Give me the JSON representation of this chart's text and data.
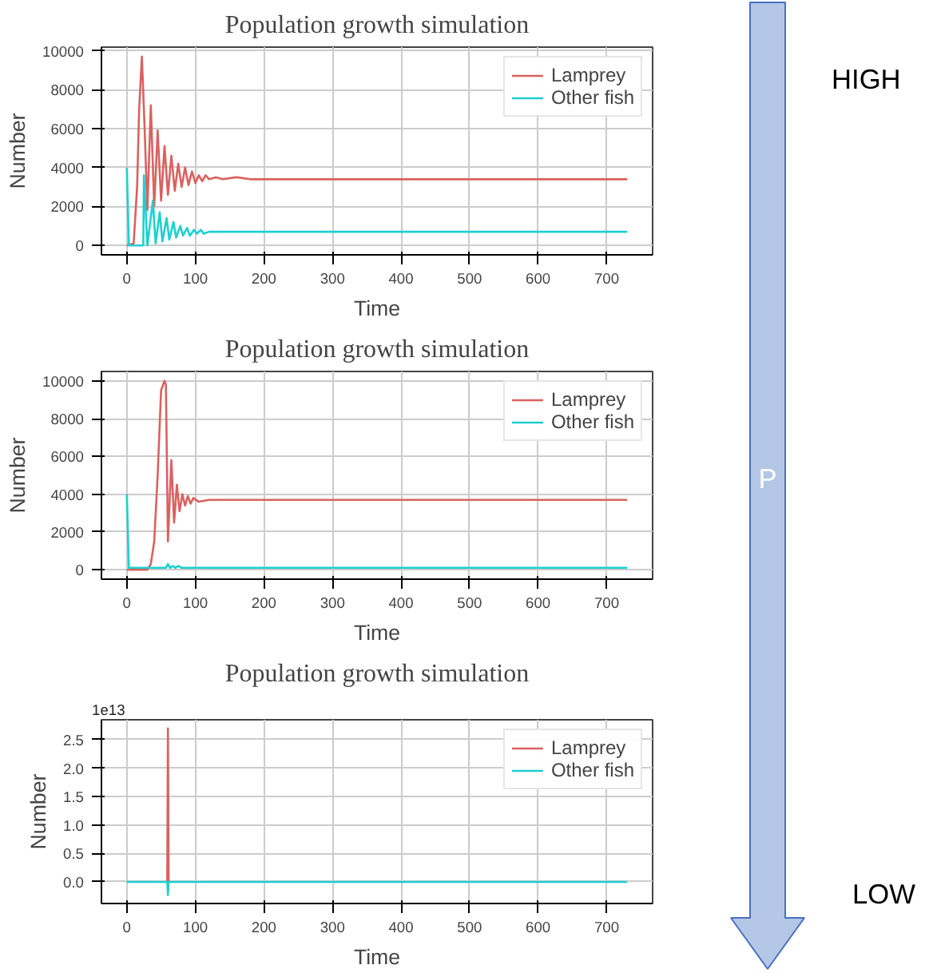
{
  "chart_data": [
    {
      "type": "line",
      "title": "Population growth simulation",
      "xlabel": "Time",
      "ylabel": "Number",
      "xlim": [
        -37,
        767
      ],
      "ylim": [
        -485,
        10185
      ],
      "xticks": [
        0,
        100,
        200,
        300,
        400,
        500,
        600,
        700
      ],
      "yticks": [
        0,
        2000,
        4000,
        6000,
        8000,
        10000
      ],
      "grid": true,
      "legend": "top right",
      "marker": "none",
      "line_style": "solid",
      "series": [
        {
          "name": "Lamprey",
          "color": "#d9625f",
          "x": [
            0,
            10,
            15,
            18,
            22,
            26,
            30,
            35,
            40,
            45,
            50,
            55,
            60,
            65,
            70,
            75,
            80,
            85,
            90,
            95,
            100,
            105,
            110,
            115,
            120,
            130,
            140,
            160,
            180,
            730
          ],
          "values": [
            0,
            100,
            3000,
            7000,
            9700,
            6000,
            1800,
            7200,
            2000,
            5900,
            2300,
            5100,
            2600,
            4600,
            2800,
            4200,
            3000,
            4000,
            3100,
            3800,
            3200,
            3600,
            3300,
            3600,
            3400,
            3500,
            3400,
            3500,
            3400,
            3400
          ]
        },
        {
          "name": "Other fish",
          "color": "#1fcfcf",
          "x": [
            0,
            3,
            24,
            25,
            30,
            38,
            42,
            48,
            52,
            58,
            62,
            68,
            72,
            78,
            82,
            88,
            92,
            98,
            102,
            108,
            112,
            120,
            130,
            150,
            180,
            730
          ],
          "values": [
            4000,
            0,
            0,
            3600,
            0,
            2300,
            100,
            1700,
            200,
            1400,
            300,
            1200,
            400,
            1000,
            500,
            900,
            500,
            800,
            600,
            800,
            600,
            700,
            700,
            700,
            700,
            700
          ]
        }
      ]
    },
    {
      "type": "line",
      "title": "Population growth simulation",
      "xlabel": "Time",
      "ylabel": "Number",
      "xlim": [
        -37,
        767
      ],
      "ylim": [
        -500,
        10500
      ],
      "xticks": [
        0,
        100,
        200,
        300,
        400,
        500,
        600,
        700
      ],
      "yticks": [
        0,
        2000,
        4000,
        6000,
        8000,
        10000
      ],
      "grid": true,
      "legend": "top right",
      "marker": "none",
      "line_style": "solid",
      "series": [
        {
          "name": "Lamprey",
          "color": "#d9625f",
          "x": [
            0,
            30,
            35,
            40,
            45,
            50,
            55,
            57,
            60,
            65,
            69,
            73,
            77,
            81,
            85,
            89,
            93,
            97,
            105,
            120,
            730
          ],
          "values": [
            0,
            0,
            300,
            1500,
            5000,
            9500,
            10000,
            9800,
            1500,
            5800,
            2500,
            4500,
            3100,
            4000,
            3400,
            3900,
            3500,
            3800,
            3600,
            3700,
            3700
          ]
        },
        {
          "name": "Other fish",
          "color": "#1fcfcf",
          "x": [
            0,
            3,
            57,
            60,
            63,
            67,
            71,
            75,
            80,
            730
          ],
          "values": [
            4000,
            100,
            100,
            300,
            100,
            200,
            100,
            200,
            100,
            100
          ]
        }
      ]
    },
    {
      "type": "line",
      "title": "Population growth simulation",
      "xlabel": "Time",
      "ylabel": "Number",
      "annotations": [
        "1e13"
      ],
      "xlim": [
        -37,
        767
      ],
      "ylim": [
        -0.38,
        2.85
      ],
      "xticks": [
        0,
        100,
        200,
        300,
        400,
        500,
        600,
        700
      ],
      "yticks": [
        {
          "value": 0,
          "label": "0.0"
        },
        0.5,
        {
          "value": 1,
          "label": "1.0"
        },
        1.5,
        {
          "value": 2,
          "label": "2.0"
        },
        2.5
      ],
      "grid": true,
      "legend": "top right",
      "marker": "none",
      "line_style": "solid",
      "series": [
        {
          "name": "Lamprey",
          "color": "#d9625f",
          "x": [
            59,
            60,
            61
          ],
          "values": [
            0,
            2.7,
            0
          ]
        },
        {
          "name": "Other fish",
          "color": "#1fcfcf",
          "x": [
            0,
            59,
            60,
            61,
            730
          ],
          "values": [
            0,
            0,
            -0.23,
            0,
            0
          ]
        }
      ]
    },
    {
      "type": "other",
      "annotations": [
        "HIGH",
        "P",
        "LOW"
      ],
      "color": "#b4c7e7"
    }
  ]
}
